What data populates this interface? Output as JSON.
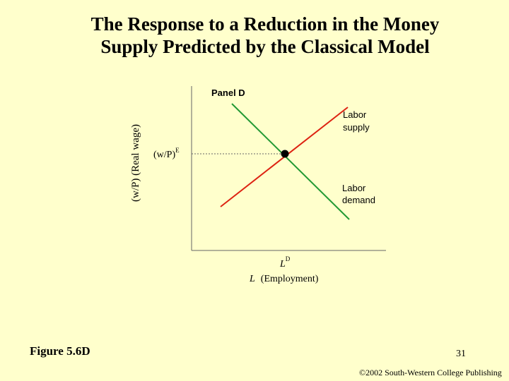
{
  "title": {
    "line1": "The Response to a Reduction in the Money",
    "line2": "Supply Predicted by the Classical Model"
  },
  "diagram": {
    "panel_label": "Panel D",
    "y_axis_label": "(w/P) (Real wage)",
    "equilibrium_wage": {
      "base": "(w/P)",
      "sup": "E"
    },
    "x_axis_label": {
      "italic": "L",
      "rest": "(Employment)"
    },
    "equilibrium_employment": {
      "base": "L",
      "sup": "D"
    },
    "labor_supply": {
      "line1": "Labor",
      "line2": "supply",
      "color": "#dd2211"
    },
    "labor_demand": {
      "line1": "Labor",
      "line2": "demand",
      "color": "#229933"
    }
  },
  "figure_label": "Figure 5.6D",
  "page_number": "31",
  "copyright": "©2002 South-Western College Publishing"
}
